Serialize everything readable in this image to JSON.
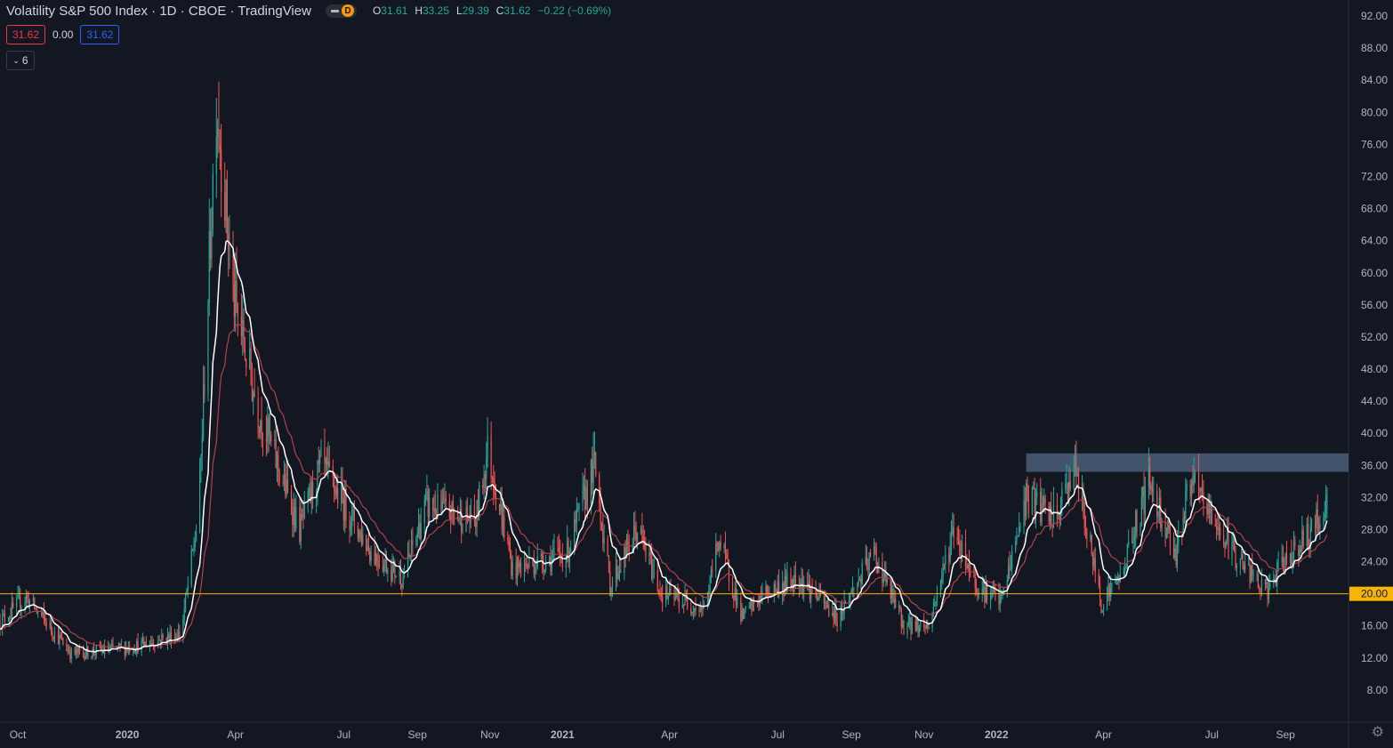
{
  "header": {
    "title": "Volatility S&P 500 Index · 1D · CBOE · TradingView",
    "interval_badge": "D",
    "ohlc": {
      "open_label": "O",
      "open": "31.61",
      "high_label": "H",
      "high": "33.25",
      "low_label": "L",
      "low": "29.39",
      "close_label": "C",
      "close": "31.62",
      "change": "−0.22 (−0.69%)"
    }
  },
  "trade": {
    "bid": "31.62",
    "spread": "0.00",
    "ask": "31.62"
  },
  "indicators_toggle": {
    "count": "6"
  },
  "colors": {
    "background": "#131722",
    "up": "#26a69a",
    "down": "#ef5350",
    "ma_fast": "#ffffff",
    "ma_slow": "#b2424a",
    "hline": "#f7b500",
    "zone": "#4a5f78",
    "axis_text": "#b2b5be"
  },
  "chart_data": {
    "type": "candlestick",
    "title": "Volatility S&P 500 Index",
    "interval": "1D",
    "y_axis": {
      "ylim": [
        4,
        94
      ],
      "ticks": [
        "92.00",
        "88.00",
        "84.00",
        "80.00",
        "76.00",
        "72.00",
        "68.00",
        "64.00",
        "60.00",
        "56.00",
        "52.00",
        "48.00",
        "44.00",
        "40.00",
        "36.00",
        "32.00",
        "28.00",
        "24.00",
        "20.00",
        "16.00",
        "12.00",
        "8.00"
      ],
      "side": "right"
    },
    "x_axis": {
      "range": [
        "2019-09-16",
        "2022-10-24"
      ],
      "ticks": [
        {
          "date": "2019-10-01",
          "label": "Oct"
        },
        {
          "date": "2020-01-01",
          "label": "2020",
          "bold": true
        },
        {
          "date": "2020-04-01",
          "label": "Apr"
        },
        {
          "date": "2020-07-01",
          "label": "Jul"
        },
        {
          "date": "2020-09-01",
          "label": "Sep"
        },
        {
          "date": "2020-11-01",
          "label": "Nov"
        },
        {
          "date": "2021-01-01",
          "label": "2021",
          "bold": true
        },
        {
          "date": "2021-04-01",
          "label": "Apr"
        },
        {
          "date": "2021-07-01",
          "label": "Jul"
        },
        {
          "date": "2021-09-01",
          "label": "Sep"
        },
        {
          "date": "2021-11-01",
          "label": "Nov"
        },
        {
          "date": "2022-01-01",
          "label": "2022",
          "bold": true
        },
        {
          "date": "2022-04-01",
          "label": "Apr"
        },
        {
          "date": "2022-07-01",
          "label": "Jul"
        },
        {
          "date": "2022-09-01",
          "label": "Sep"
        }
      ]
    },
    "series": [
      {
        "type": "candles",
        "first_date": "2019-09-16",
        "last_date": "2022-10-06",
        "approx_close_path": [
          {
            "date": "2019-09-16",
            "value": 16.5
          },
          {
            "date": "2019-10-08",
            "value": 19.5
          },
          {
            "date": "2019-11-15",
            "value": 12.5
          },
          {
            "date": "2019-12-20",
            "value": 13
          },
          {
            "date": "2020-01-10",
            "value": 13.5
          },
          {
            "date": "2020-02-15",
            "value": 15
          },
          {
            "date": "2020-03-01",
            "value": 30
          },
          {
            "date": "2020-03-16",
            "value": 82
          },
          {
            "date": "2020-03-30",
            "value": 57
          },
          {
            "date": "2020-04-20",
            "value": 43
          },
          {
            "date": "2020-05-25",
            "value": 28
          },
          {
            "date": "2020-06-12",
            "value": 36
          },
          {
            "date": "2020-07-25",
            "value": 25
          },
          {
            "date": "2020-08-20",
            "value": 22
          },
          {
            "date": "2020-09-08",
            "value": 31
          },
          {
            "date": "2020-10-20",
            "value": 29
          },
          {
            "date": "2020-10-30",
            "value": 38
          },
          {
            "date": "2020-11-20",
            "value": 23
          },
          {
            "date": "2021-01-05",
            "value": 25
          },
          {
            "date": "2021-01-28",
            "value": 36
          },
          {
            "date": "2021-02-10",
            "value": 21
          },
          {
            "date": "2021-03-05",
            "value": 28
          },
          {
            "date": "2021-03-25",
            "value": 20
          },
          {
            "date": "2021-05-01",
            "value": 18
          },
          {
            "date": "2021-05-12",
            "value": 27
          },
          {
            "date": "2021-06-01",
            "value": 17
          },
          {
            "date": "2021-06-20",
            "value": 20
          },
          {
            "date": "2021-07-19",
            "value": 22
          },
          {
            "date": "2021-08-20",
            "value": 17
          },
          {
            "date": "2021-09-20",
            "value": 25
          },
          {
            "date": "2021-10-15",
            "value": 16
          },
          {
            "date": "2021-11-05",
            "value": 16
          },
          {
            "date": "2021-11-26",
            "value": 28
          },
          {
            "date": "2021-12-15",
            "value": 21
          },
          {
            "date": "2022-01-05",
            "value": 19
          },
          {
            "date": "2022-01-26",
            "value": 32
          },
          {
            "date": "2022-02-20",
            "value": 29
          },
          {
            "date": "2022-03-07",
            "value": 36
          },
          {
            "date": "2022-03-30",
            "value": 19
          },
          {
            "date": "2022-04-15",
            "value": 22
          },
          {
            "date": "2022-05-09",
            "value": 34
          },
          {
            "date": "2022-06-01",
            "value": 25
          },
          {
            "date": "2022-06-13",
            "value": 34
          },
          {
            "date": "2022-07-15",
            "value": 26
          },
          {
            "date": "2022-08-15",
            "value": 20
          },
          {
            "date": "2022-09-05",
            "value": 25
          },
          {
            "date": "2022-09-25",
            "value": 28
          },
          {
            "date": "2022-10-06",
            "value": 31.62
          }
        ]
      },
      {
        "type": "line",
        "role": "fast_ma",
        "approx": "smoothed close, white"
      },
      {
        "type": "line",
        "role": "slow_ma",
        "approx": "longer smoothed close, dark red"
      }
    ],
    "last_candle": {
      "open": 31.61,
      "high": 33.25,
      "low": 29.39,
      "close": 31.62
    },
    "horizontal_line": {
      "value": 20.0,
      "label": "20.00"
    },
    "zone": {
      "from_date": "2022-01-26",
      "to_date": "2022-10-24",
      "low": 35.2,
      "high": 37.5
    },
    "grid": false
  }
}
